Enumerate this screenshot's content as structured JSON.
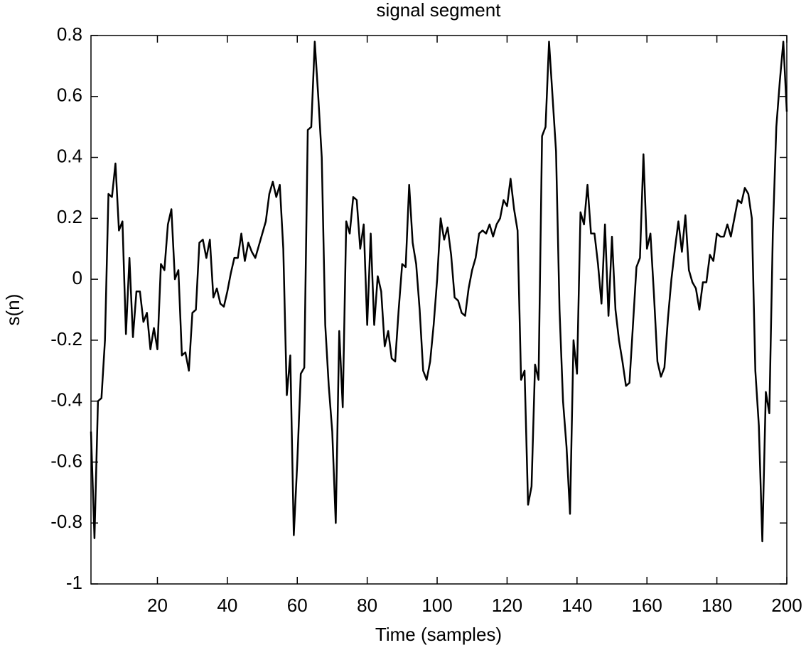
{
  "chart_data": {
    "type": "line",
    "title": "signal segment",
    "xlabel": "Time (samples)",
    "ylabel": "s(n)",
    "x": [
      1,
      2,
      3,
      4,
      5,
      6,
      7,
      8,
      9,
      10,
      11,
      12,
      13,
      14,
      15,
      16,
      17,
      18,
      19,
      20,
      21,
      22,
      23,
      24,
      25,
      26,
      27,
      28,
      29,
      30,
      31,
      32,
      33,
      34,
      35,
      36,
      37,
      38,
      39,
      40,
      41,
      42,
      43,
      44,
      45,
      46,
      47,
      48,
      49,
      50,
      51,
      52,
      53,
      54,
      55,
      56,
      57,
      58,
      59,
      60,
      61,
      62,
      63,
      64,
      65,
      66,
      67,
      68,
      69,
      70,
      71,
      72,
      73,
      74,
      75,
      76,
      77,
      78,
      79,
      80,
      81,
      82,
      83,
      84,
      85,
      86,
      87,
      88,
      89,
      90,
      91,
      92,
      93,
      94,
      95,
      96,
      97,
      98,
      99,
      100,
      101,
      102,
      103,
      104,
      105,
      106,
      107,
      108,
      109,
      110,
      111,
      112,
      113,
      114,
      115,
      116,
      117,
      118,
      119,
      120,
      121,
      122,
      123,
      124,
      125,
      126,
      127,
      128,
      129,
      130,
      131,
      132,
      133,
      134,
      135,
      136,
      137,
      138,
      139,
      140,
      141,
      142,
      143,
      144,
      145,
      146,
      147,
      148,
      149,
      150,
      151,
      152,
      153,
      154,
      155,
      156,
      157,
      158,
      159,
      160,
      161,
      162,
      163,
      164,
      165,
      166,
      167,
      168,
      169,
      170,
      171,
      172,
      173,
      174,
      175,
      176,
      177,
      178,
      179,
      180,
      181,
      182,
      183,
      184,
      185,
      186,
      187,
      188,
      189,
      190,
      191,
      192,
      193,
      194,
      195,
      196,
      197,
      198,
      199,
      200
    ],
    "values": [
      -0.5,
      -0.85,
      -0.4,
      -0.39,
      -0.2,
      0.28,
      0.27,
      0.38,
      0.16,
      0.19,
      -0.18,
      0.07,
      -0.19,
      -0.04,
      -0.04,
      -0.14,
      -0.11,
      -0.23,
      -0.16,
      -0.23,
      0.05,
      0.03,
      0.18,
      0.23,
      0.0,
      0.03,
      -0.25,
      -0.24,
      -0.3,
      -0.11,
      -0.1,
      0.12,
      0.13,
      0.07,
      0.13,
      -0.06,
      -0.03,
      -0.08,
      -0.09,
      -0.04,
      0.02,
      0.07,
      0.07,
      0.15,
      0.06,
      0.12,
      0.09,
      0.07,
      0.11,
      0.15,
      0.19,
      0.28,
      0.32,
      0.27,
      0.31,
      0.1,
      -0.38,
      -0.25,
      -0.84,
      -0.6,
      -0.31,
      -0.29,
      0.49,
      0.5,
      0.78,
      0.6,
      0.4,
      -0.15,
      -0.35,
      -0.5,
      -0.8,
      -0.17,
      -0.42,
      0.19,
      0.15,
      0.27,
      0.26,
      0.1,
      0.18,
      -0.15,
      0.15,
      -0.15,
      0.01,
      -0.04,
      -0.22,
      -0.17,
      -0.26,
      -0.27,
      -0.1,
      0.05,
      0.04,
      0.31,
      0.12,
      0.05,
      -0.1,
      -0.3,
      -0.33,
      -0.27,
      -0.15,
      0.0,
      0.2,
      0.13,
      0.17,
      0.08,
      -0.06,
      -0.07,
      -0.11,
      -0.12,
      -0.03,
      0.03,
      0.07,
      0.15,
      0.16,
      0.15,
      0.18,
      0.14,
      0.18,
      0.2,
      0.26,
      0.24,
      0.33,
      0.23,
      0.16,
      -0.33,
      -0.3,
      -0.74,
      -0.68,
      -0.28,
      -0.33,
      0.47,
      0.5,
      0.78,
      0.6,
      0.42,
      -0.1,
      -0.4,
      -0.55,
      -0.77,
      -0.2,
      -0.31,
      0.22,
      0.18,
      0.31,
      0.15,
      0.15,
      0.05,
      -0.08,
      0.18,
      -0.12,
      0.14,
      -0.1,
      -0.2,
      -0.27,
      -0.35,
      -0.34,
      -0.15,
      0.04,
      0.07,
      0.41,
      0.1,
      0.15,
      -0.05,
      -0.27,
      -0.32,
      -0.29,
      -0.13,
      0.0,
      0.1,
      0.19,
      0.09,
      0.21,
      0.03,
      -0.01,
      -0.03,
      -0.1,
      -0.01,
      -0.01,
      0.08,
      0.06,
      0.15,
      0.14,
      0.14,
      0.18,
      0.14,
      0.2,
      0.26,
      0.25,
      0.3,
      0.28,
      0.2,
      -0.3,
      -0.48,
      -0.86,
      -0.37,
      -0.44,
      0.15,
      0.5,
      0.65,
      0.78,
      0.55
    ],
    "color": "#000000",
    "xlim": [
      1,
      200
    ],
    "xticks": [
      20,
      40,
      60,
      80,
      100,
      120,
      140,
      160,
      180,
      200
    ],
    "ylim": [
      -1,
      0.8
    ],
    "yticks": [
      -1,
      -0.8,
      -0.6,
      -0.4,
      -0.2,
      0,
      0.2,
      0.4,
      0.6,
      0.8
    ],
    "grid": false
  }
}
